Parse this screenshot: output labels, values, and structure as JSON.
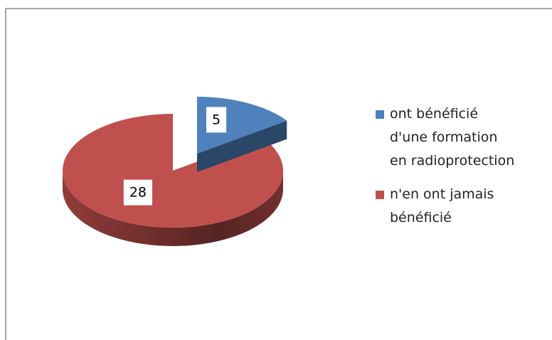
{
  "chart_data": {
    "type": "pie",
    "categories": [
      "ont bénéficié d'une formation en radioprotection",
      "n'en ont jamais bénéficié"
    ],
    "values": [
      5,
      28
    ],
    "colors": [
      "#4f81bd",
      "#c0504d"
    ]
  }
}
